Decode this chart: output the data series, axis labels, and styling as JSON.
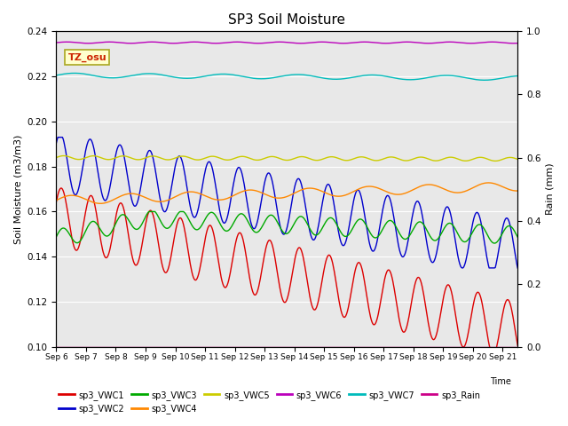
{
  "title": "SP3 Soil Moisture",
  "xlabel": "Time",
  "ylabel_left": "Soil Moisture (m3/m3)",
  "ylabel_right": "Rain (mm)",
  "ylim_left": [
    0.1,
    0.24
  ],
  "ylim_right": [
    0.0,
    1.0
  ],
  "xlim": [
    0,
    15.5
  ],
  "x_tick_labels": [
    "Sep 6",
    "Sep 7",
    "Sep 8",
    "Sep 9",
    "Sep 10",
    "Sep 11",
    "Sep 12",
    "Sep 13",
    "Sep 14",
    "Sep 15",
    "Sep 16",
    "Sep 17",
    "Sep 18",
    "Sep 19",
    "Sep 20",
    "Sep 21"
  ],
  "background_color": "#e8e8e8",
  "annotation_text": "TZ_osu",
  "annotation_color": "#cc2200",
  "annotation_bg": "#ffffcc",
  "annotation_border": "#aaa820",
  "line_colors": {
    "sp3_VWC1": "#dd0000",
    "sp3_VWC2": "#0000cc",
    "sp3_VWC3": "#00aa00",
    "sp3_VWC4": "#ff8800",
    "sp3_VWC5": "#cccc00",
    "sp3_VWC6": "#bb00bb",
    "sp3_VWC7": "#00bbbb",
    "sp3_Rain": "#cc0088"
  }
}
